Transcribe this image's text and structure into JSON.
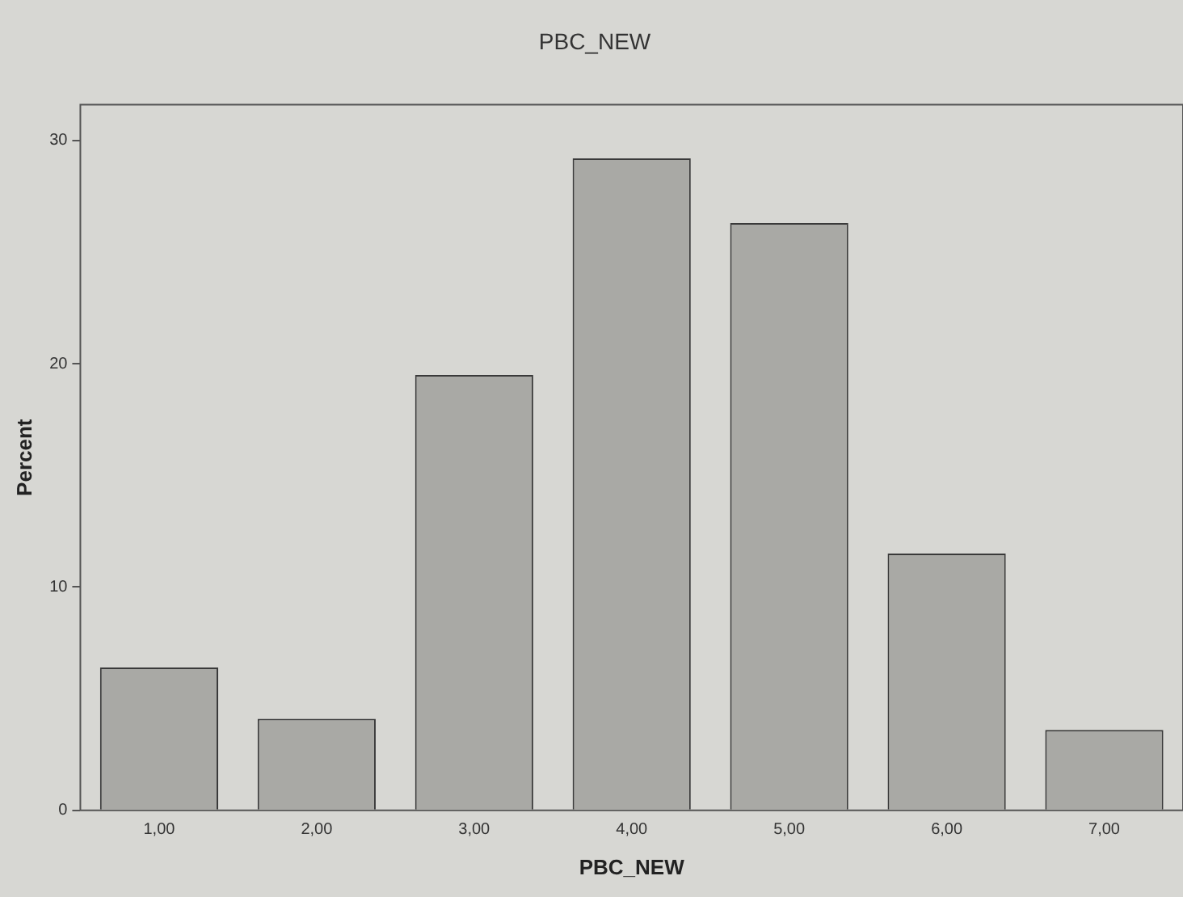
{
  "chart_data": {
    "type": "bar",
    "title": "PBC_NEW",
    "xlabel": "PBC_NEW",
    "ylabel": "Percent",
    "categories": [
      "1,00",
      "2,00",
      "3,00",
      "4,00",
      "5,00",
      "6,00",
      "7,00"
    ],
    "values": [
      6.4,
      4.1,
      19.5,
      29.2,
      26.3,
      11.5,
      3.6
    ],
    "color": "#a9a9a5",
    "ylim": [
      0,
      31.6
    ],
    "yticks": [
      0,
      10,
      20,
      30
    ],
    "grid": false,
    "legend": false
  }
}
